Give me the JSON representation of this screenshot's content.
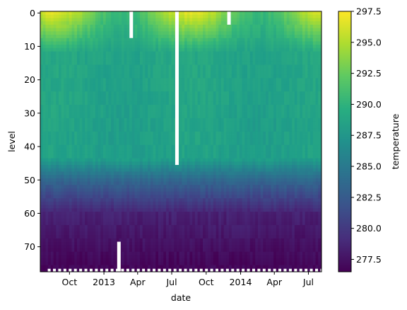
{
  "chart_data": {
    "type": "heatmap",
    "xlabel": "date",
    "ylabel": "level",
    "colorbar_label": "temperature",
    "colormap": "viridis",
    "x_tick_labels": [
      "Oct",
      "2013",
      "Apr",
      "Jul",
      "Oct",
      "2014",
      "Apr",
      "Jul"
    ],
    "x_tick_dates": [
      "2012-10-01",
      "2013-01-01",
      "2013-04-01",
      "2013-07-01",
      "2013-10-01",
      "2014-01-01",
      "2014-04-01",
      "2014-07-01"
    ],
    "x_range": [
      "2012-07-15",
      "2014-08-05"
    ],
    "y_tick_values": [
      0,
      10,
      20,
      30,
      40,
      50,
      60,
      70
    ],
    "y_range": [
      -0.5,
      77.5
    ],
    "y_inverted": true,
    "colorbar_ticks": [
      297.5,
      295.0,
      292.5,
      290.0,
      287.5,
      285.0,
      282.5,
      280.0,
      277.5
    ],
    "color_range": [
      276.5,
      297.5
    ],
    "missing_data_gaps": [
      {
        "date": "2013-03-15",
        "levels": [
          0,
          7
        ]
      },
      {
        "date": "2013-07-15",
        "levels": [
          0,
          45
        ]
      },
      {
        "date": "2013-12-01",
        "levels": [
          0,
          3
        ]
      },
      {
        "date": "2013-02-10",
        "levels": [
          69,
          77
        ]
      }
    ],
    "approx_profile_by_level": {
      "surface_summer": 296.5,
      "surface_winter": 290.5,
      "level_20_to_40": 288.5,
      "level_50": 283.5,
      "level_60": 278.5,
      "level_75": 276.8
    }
  }
}
